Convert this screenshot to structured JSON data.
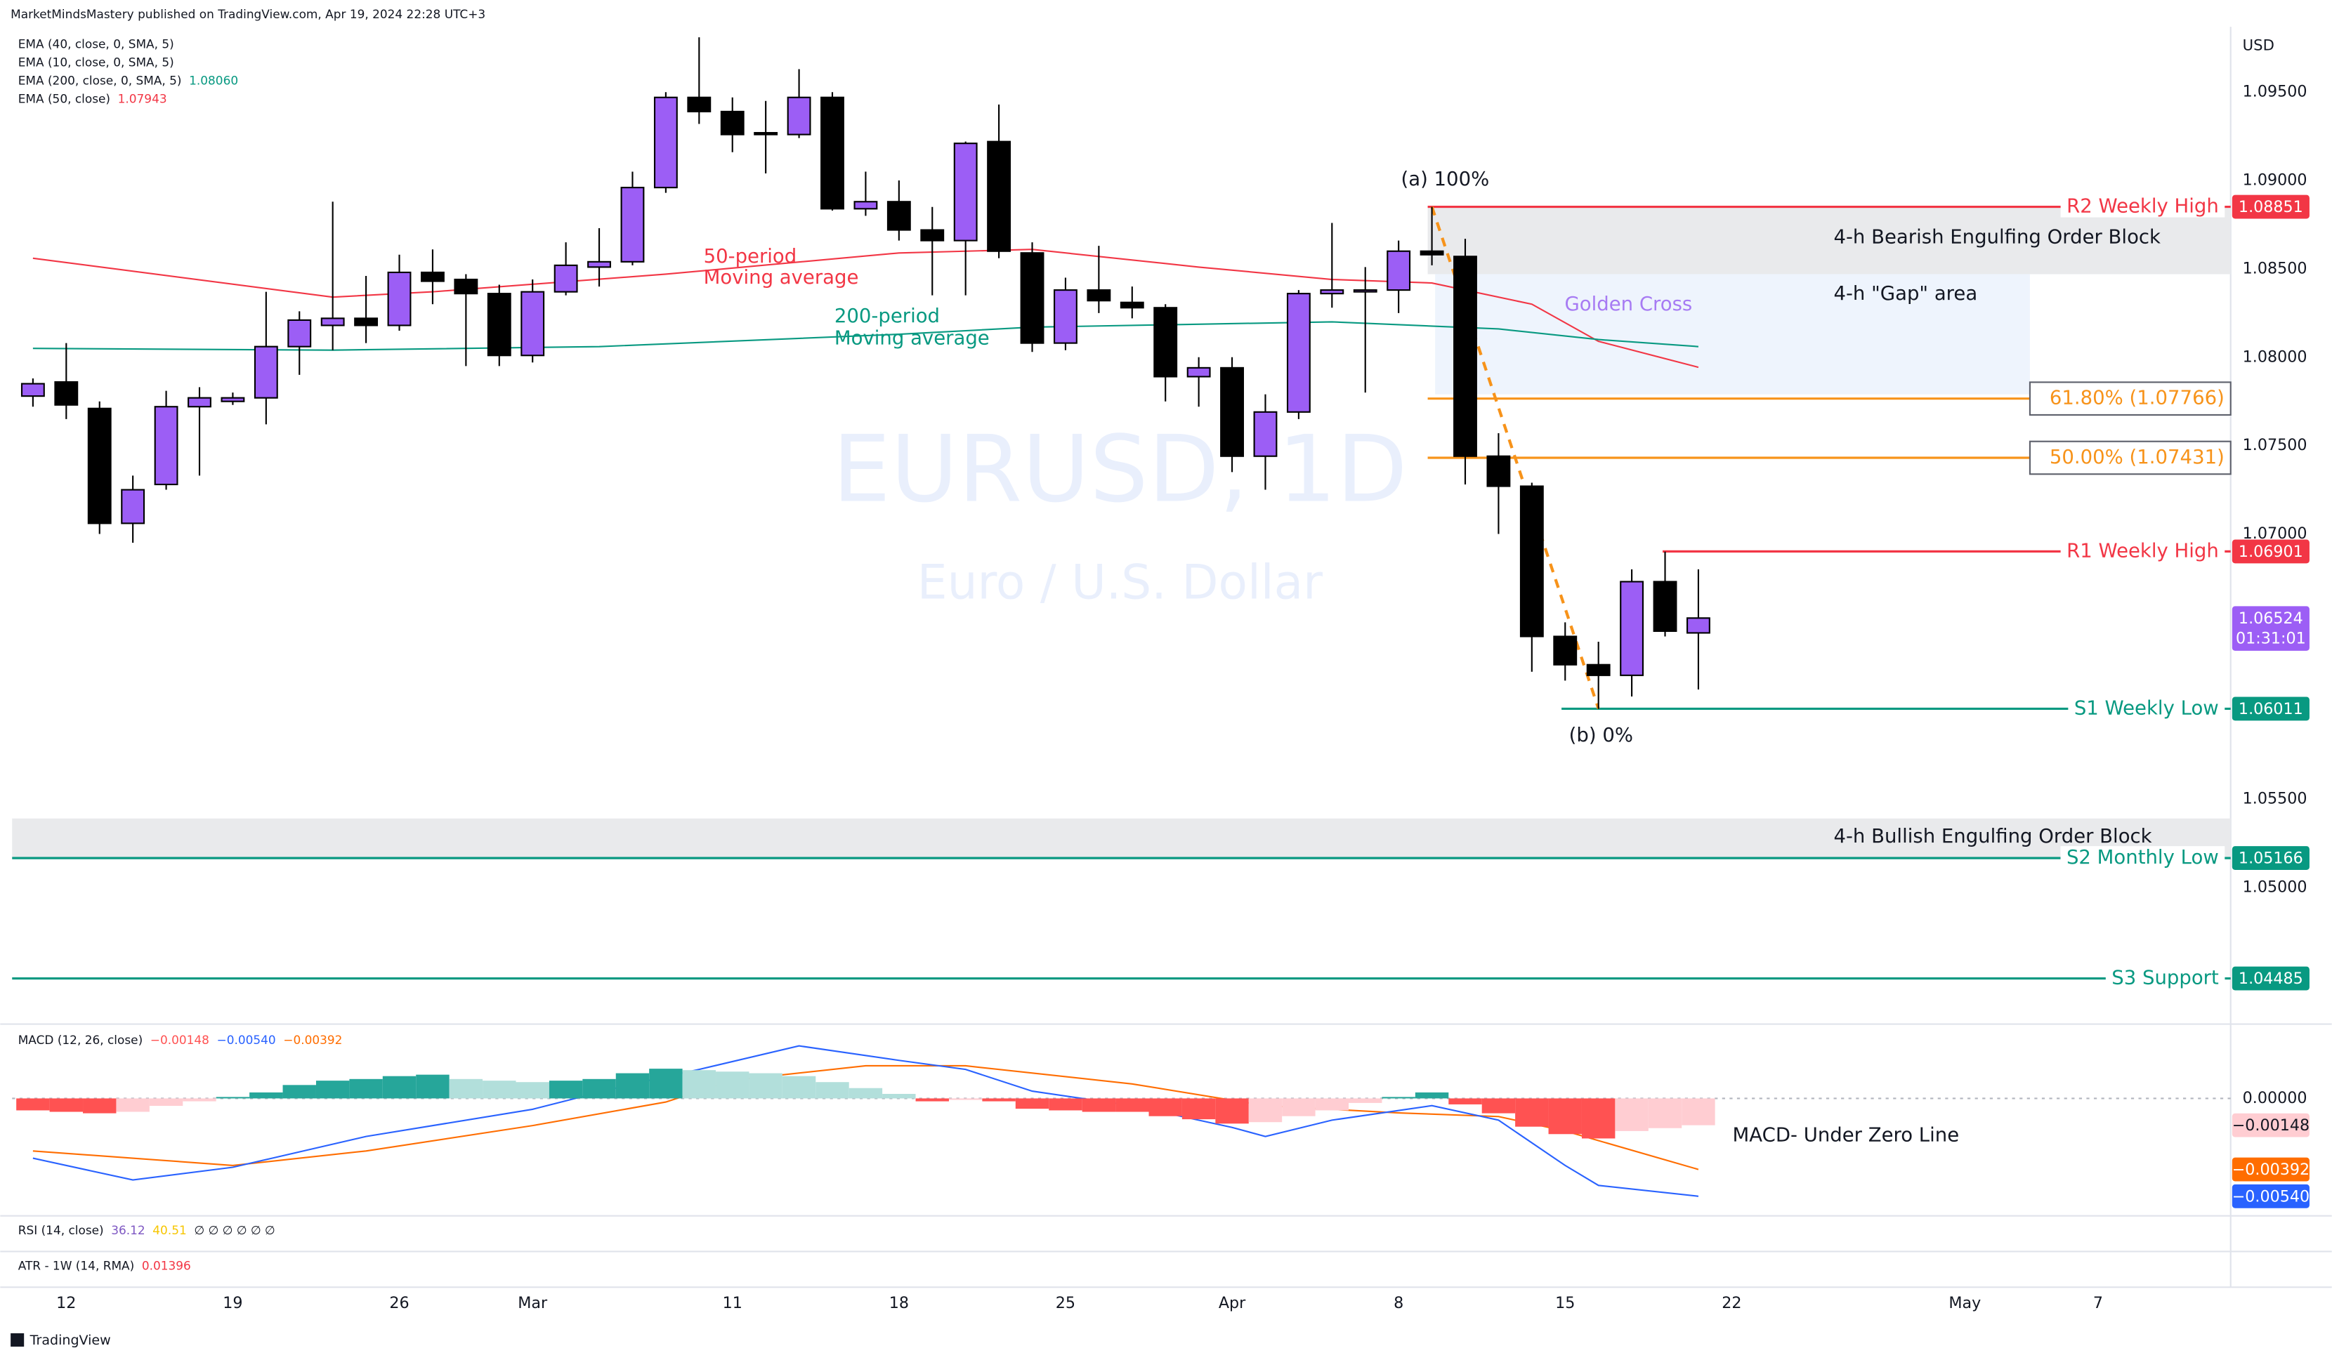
{
  "header": {
    "publisher": "MarketMindsMastery published on TradingView.com, Apr 19, 2024 22:28 UTC+3",
    "legend": [
      {
        "text": "EMA (40, close, 0, SMA, 5)"
      },
      {
        "text": "EMA (10, close, 0, SMA, 5)"
      },
      {
        "text": "EMA (200, close, 0, SMA, 5)",
        "value": "1.08060",
        "color": "#089981"
      },
      {
        "text": "EMA (50, close)",
        "value": "1.07943",
        "color": "#f23645"
      }
    ]
  },
  "watermark": {
    "symbol": "EURUSD, 1D",
    "description": "Euro / U.S. Dollar"
  },
  "chart_data": [
    {
      "type": "candlestick",
      "currency": "USD",
      "xlim": [
        -0.625,
        65.98
      ],
      "xticks": [
        {
          "value": 1,
          "label": "12"
        },
        {
          "value": 6,
          "label": "19"
        },
        {
          "value": 11,
          "label": "26"
        },
        {
          "value": 15,
          "label": "Mar"
        },
        {
          "value": 21,
          "label": "11"
        },
        {
          "value": 26,
          "label": "18"
        },
        {
          "value": 31,
          "label": "25"
        },
        {
          "value": 36,
          "label": "Apr"
        },
        {
          "value": 41,
          "label": "8"
        },
        {
          "value": 46,
          "label": "15"
        },
        {
          "value": 51,
          "label": "22"
        },
        {
          "value": 58,
          "label": "May"
        },
        {
          "value": 62,
          "label": "7"
        }
      ],
      "ylim": [
        1.04235,
        1.09853
      ],
      "yticks": [
        {
          "value": 1.095,
          "label": "1.09500"
        },
        {
          "value": 1.09,
          "label": "1.09000"
        },
        {
          "value": 1.085,
          "label": "1.08500"
        },
        {
          "value": 1.08,
          "label": "1.08000"
        },
        {
          "value": 1.075,
          "label": "1.07500"
        },
        {
          "value": 1.07,
          "label": "1.07000"
        },
        {
          "value": 1.065,
          "label": "1.06500"
        },
        {
          "value": 1.06,
          "label": "1.06000"
        },
        {
          "value": 1.055,
          "label": "1.05500"
        },
        {
          "value": 1.05,
          "label": "1.05000"
        }
      ],
      "up_color": "#9c5ef5",
      "down_color": "#000000",
      "open": [
        1.0778,
        1.0786,
        1.0771,
        1.0706,
        1.0728,
        1.0772,
        1.0775,
        1.0777,
        1.0806,
        1.0818,
        1.0822,
        1.0818,
        1.0848,
        1.0844,
        1.0836,
        1.0801,
        1.0837,
        1.0851,
        1.0854,
        1.0896,
        1.0947,
        1.0939,
        1.0927,
        1.0926,
        1.0947,
        1.0884,
        1.0888,
        1.0872,
        1.0866,
        1.0922,
        1.0859,
        1.0808,
        1.0838,
        1.0831,
        1.0828,
        1.0789,
        1.0794,
        1.0744,
        1.0769,
        1.0836,
        1.0837,
        1.0838,
        1.086,
        1.0857,
        1.0744,
        1.0727,
        1.0642,
        1.0626,
        1.062,
        1.0673,
        1.0644
      ],
      "high": [
        1.0788,
        1.0808,
        1.0775,
        1.0733,
        1.0781,
        1.0783,
        1.078,
        1.0837,
        1.0826,
        1.0888,
        1.0846,
        1.0858,
        1.0861,
        1.0847,
        1.0841,
        1.0844,
        1.0865,
        1.0873,
        1.0905,
        1.095,
        1.0981,
        1.0947,
        1.0945,
        1.0963,
        1.095,
        1.0905,
        1.09,
        1.0885,
        1.0922,
        1.0943,
        1.0865,
        1.0845,
        1.0863,
        1.084,
        1.083,
        1.08,
        1.08,
        1.0779,
        1.0838,
        1.0876,
        1.0851,
        1.0866,
        1.0885,
        1.0867,
        1.0757,
        1.0729,
        1.065,
        1.0639,
        1.068,
        1.069,
        1.068
      ],
      "low": [
        1.0772,
        1.0765,
        1.07,
        1.0695,
        1.0725,
        1.0733,
        1.0773,
        1.0762,
        1.079,
        1.0804,
        1.0808,
        1.0815,
        1.083,
        1.0795,
        1.0795,
        1.0797,
        1.0835,
        1.084,
        1.0852,
        1.0893,
        1.0932,
        1.0916,
        1.0904,
        1.0924,
        1.0883,
        1.088,
        1.0866,
        1.0835,
        1.0835,
        1.0856,
        1.0803,
        1.0804,
        1.0825,
        1.0822,
        1.0775,
        1.0772,
        1.0735,
        1.0725,
        1.0765,
        1.0828,
        1.078,
        1.0825,
        1.0852,
        1.0728,
        1.07,
        1.0622,
        1.0617,
        1.0601,
        1.0608,
        1.0642,
        1.0612
      ],
      "close": [
        1.0785,
        1.0773,
        1.0706,
        1.0725,
        1.0772,
        1.0777,
        1.0777,
        1.0806,
        1.0821,
        1.0822,
        1.0818,
        1.0848,
        1.0843,
        1.0836,
        1.0801,
        1.0837,
        1.0852,
        1.0854,
        1.0896,
        1.0947,
        1.0939,
        1.0926,
        1.0926,
        1.0947,
        1.0884,
        1.0888,
        1.0872,
        1.0866,
        1.0921,
        1.086,
        1.0808,
        1.0838,
        1.0832,
        1.0828,
        1.0789,
        1.0794,
        1.0744,
        1.0769,
        1.0836,
        1.0838,
        1.0838,
        1.086,
        1.0858,
        1.0744,
        1.0727,
        1.0642,
        1.0626,
        1.062,
        1.0673,
        1.0645,
        1.06524
      ],
      "ma_lines": [
        {
          "color": "#f23645",
          "x": [
            0,
            9,
            12,
            19,
            26,
            30,
            35,
            39,
            42,
            45,
            47,
            50
          ],
          "values": [
            1.0856,
            1.0834,
            1.0837,
            1.0847,
            1.0859,
            1.0861,
            1.0851,
            1.0844,
            1.0842,
            1.083,
            1.0809,
            1.07943
          ]
        },
        {
          "color": "#089981",
          "x": [
            0,
            9,
            17,
            26,
            30,
            39,
            44,
            47,
            50
          ],
          "values": [
            1.0805,
            1.0804,
            1.0806,
            1.0813,
            1.0817,
            1.082,
            1.0816,
            1.081,
            1.0806
          ]
        }
      ],
      "zones": [
        {
          "label": "4-h Bearish Engulfing Order Block",
          "top": 1.0885,
          "bottom": 1.0847,
          "color": "#e9eaec"
        },
        {
          "label": "4-h \"Gap\" area",
          "top": 1.0847,
          "bottom": 1.0779,
          "color": "#eef4fd"
        },
        {
          "label": "4-h Bullish Engulfing Order Block",
          "top": 1.0539,
          "bottom": 1.0517,
          "color": "#e9eaec"
        }
      ],
      "levels": [
        {
          "label": "R2 Weekly High",
          "value": 1.08851,
          "value_label": "1.08851",
          "color": "#f23645"
        },
        {
          "label": "61.80% (1.07766)",
          "value": 1.07766,
          "color": "#f7931a"
        },
        {
          "label": "50.00% (1.07431)",
          "value": 1.07431,
          "color": "#f7931a"
        },
        {
          "label": "R1 Weekly High",
          "value": 1.06901,
          "value_label": "1.06901",
          "color": "#f23645"
        },
        {
          "label": "S1 Weekly Low",
          "value": 1.06011,
          "value_label": "1.06011",
          "color": "#089981"
        },
        {
          "label": "S2 Monthly Low",
          "value": 1.05166,
          "value_label": "1.05166",
          "color": "#089981"
        },
        {
          "label": "S3 Support",
          "value": 1.04485,
          "value_label": "1.04485",
          "color": "#089981"
        }
      ],
      "annotations": [
        {
          "text": "(a) 100%",
          "color": "#131722"
        },
        {
          "text": "(b) 0%",
          "color": "#131722"
        },
        {
          "text": "50-period",
          "color": "#f23645"
        },
        {
          "text": "Moving average",
          "color": "#f23645"
        },
        {
          "text": "200-period",
          "color": "#089981"
        },
        {
          "text": "Moving average",
          "color": "#089981"
        },
        {
          "text": "Golden Cross",
          "color": "#a77bf3"
        }
      ],
      "last_price": {
        "value": 1.06524,
        "label": "1.06524",
        "countdown": "01:31:01",
        "color": "#9c5ef5"
      }
    },
    {
      "type": "macd",
      "title": "MACD (12, 26, close)",
      "ylim": [
        -0.00648,
        0.00402
      ],
      "yticks": [
        {
          "value": 0,
          "label": "0.00000"
        }
      ],
      "histogram": {
        "values": [
          -0.00066,
          -0.00074,
          -0.00082,
          -0.00074,
          -0.00041,
          -0.00016,
          8e-05,
          0.00033,
          0.00074,
          0.00098,
          0.00107,
          0.00123,
          0.00131,
          0.00107,
          0.00098,
          0.0009,
          0.00098,
          0.00107,
          0.00139,
          0.00164,
          0.00156,
          0.00148,
          0.00139,
          0.00123,
          0.0009,
          0.00057,
          0.00025,
          -0.00016,
          -8e-05,
          -0.00016,
          -0.00057,
          -0.00066,
          -0.00074,
          -0.00074,
          -0.00098,
          -0.00115,
          -0.00139,
          -0.00131,
          -0.00098,
          -0.00066,
          -0.00025,
          8e-05,
          0.00033,
          -0.00033,
          -0.00082,
          -0.00156,
          -0.00197,
          -0.00221,
          -0.0018,
          -0.00164,
          -0.00148
        ],
        "colors": [
          "#26a69a",
          "#b2dfdb",
          "#ffcdd2",
          "#ff5252"
        ],
        "label": "−0.00148"
      },
      "macd": {
        "color": "#2962ff",
        "label": "−0.00540",
        "x": [
          0,
          3,
          6,
          10,
          15,
          18,
          20,
          23,
          26,
          28,
          30,
          33,
          36,
          37,
          39,
          42,
          44,
          46,
          47,
          50
        ],
        "values": [
          -0.0033,
          -0.0045,
          -0.0038,
          -0.0021,
          -0.0006,
          0.0008,
          0.0016,
          0.0029,
          0.0021,
          0.0016,
          0.0004,
          -0.0004,
          -0.0016,
          -0.0021,
          -0.0012,
          -0.0004,
          -0.0012,
          -0.0037,
          -0.0048,
          -0.0054
        ]
      },
      "signal": {
        "color": "#ff6d00",
        "label": "−0.00392",
        "x": [
          0,
          6,
          10,
          15,
          19,
          21,
          25,
          28,
          33,
          37,
          41,
          44,
          46,
          50
        ],
        "values": [
          -0.0029,
          -0.0037,
          -0.0029,
          -0.0015,
          -0.0002,
          0.001,
          0.0018,
          0.0018,
          0.0008,
          -0.0004,
          -0.0008,
          -0.001,
          -0.0018,
          -0.00392
        ]
      },
      "annotation": "MACD- Under Zero Line"
    }
  ],
  "rsi": {
    "title": "RSI (14, close)",
    "values": [
      36.12,
      40.51
    ],
    "colors": [
      "#7e57c2",
      "#f7c600"
    ],
    "extra": "∅ ∅ ∅ ∅ ∅ ∅"
  },
  "atr": {
    "title": "ATR - 1W (14, RMA)",
    "value": 0.01396,
    "color": "#f23645"
  },
  "footer": "TradingView"
}
